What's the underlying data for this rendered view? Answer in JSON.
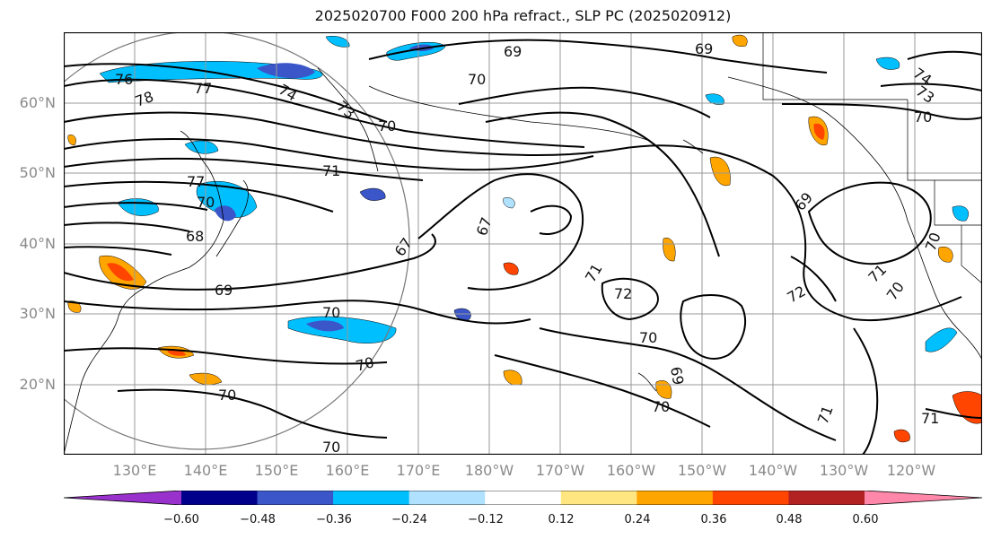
{
  "title": "2025020700 F000 200 hPa refract., SLP PC (2025020912)",
  "lat_labels": [
    "60°N",
    "50°N",
    "40°N",
    "30°N",
    "20°N"
  ],
  "lon_labels": [
    "130°E",
    "140°E",
    "150°E",
    "160°E",
    "170°E",
    "180°W",
    "170°W",
    "160°W",
    "150°W",
    "140°W",
    "130°W",
    "120°W"
  ],
  "contour_labels": [
    "76",
    "78",
    "77",
    "74",
    "73",
    "71",
    "77",
    "70",
    "68",
    "69",
    "70",
    "70",
    "70",
    "70",
    "67",
    "67",
    "69",
    "69",
    "70",
    "71",
    "72",
    "70",
    "69",
    "70",
    "72",
    "71",
    "70",
    "70",
    "71",
    "71",
    "69",
    "74",
    "73",
    "70",
    "70"
  ],
  "colorbar": {
    "ticks": [
      "−0.60",
      "−0.48",
      "−0.36",
      "−0.24",
      "−0.12",
      "0.12",
      "0.24",
      "0.36",
      "0.48",
      "0.60"
    ],
    "colors": [
      "#9932cc",
      "#00008b",
      "#3a56c8",
      "#00bfff",
      "#b0e2ff",
      "#ffffff",
      "#ffe680",
      "#ffa500",
      "#ff4500",
      "#b22222",
      "#ff88aa"
    ]
  }
}
